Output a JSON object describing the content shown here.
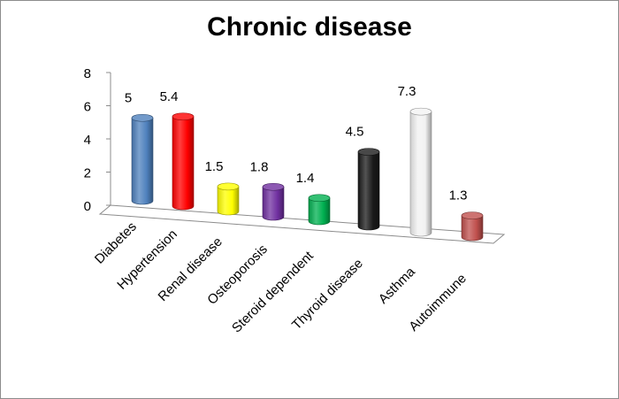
{
  "chart_data": {
    "type": "bar",
    "title": "Chronic disease",
    "categories": [
      "Diabetes",
      "Hypertension",
      "Renal disease",
      "Osteoporosis",
      "Steroid dependent",
      "Thyroid disease",
      "Asthma",
      "Autoimmune"
    ],
    "values": [
      5,
      5.4,
      1.5,
      1.8,
      1.4,
      4.5,
      7.3,
      1.3
    ],
    "data_labels": [
      "5",
      "5.4",
      "1.5",
      "1.8",
      "1.4",
      "4.5",
      "7.3",
      "1.3"
    ],
    "colors": [
      "#4f81bd",
      "#ff0000",
      "#ffff00",
      "#7030a0",
      "#00b050",
      "#1a1a1a",
      "#f2f2f2",
      "#c0504d"
    ],
    "ylim": [
      0,
      8
    ],
    "yticks": [
      "0",
      "2",
      "4",
      "6",
      "8"
    ],
    "grid": false,
    "legend": "none",
    "style": "3d-cylinder"
  }
}
